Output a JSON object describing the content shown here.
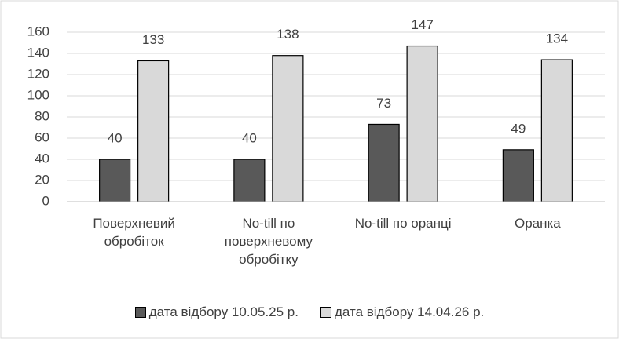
{
  "chart_data": {
    "type": "bar",
    "categories": [
      "Поверхневий обробіток",
      "No-till по поверхневому обробітку",
      "No-till по оранці",
      "Оранка"
    ],
    "series": [
      {
        "name": "дата відбору 10.05.25 р.",
        "color": "#595959",
        "values": [
          40,
          40,
          73,
          49
        ]
      },
      {
        "name": "дата відбору 14.04.26 р.",
        "color": "#d9d9d9",
        "values": [
          133,
          138,
          147,
          134
        ]
      }
    ],
    "ylim": [
      0,
      160
    ],
    "yticks": [
      0,
      20,
      40,
      60,
      80,
      100,
      120,
      140,
      160
    ],
    "grid": true,
    "legend": "bottom"
  }
}
